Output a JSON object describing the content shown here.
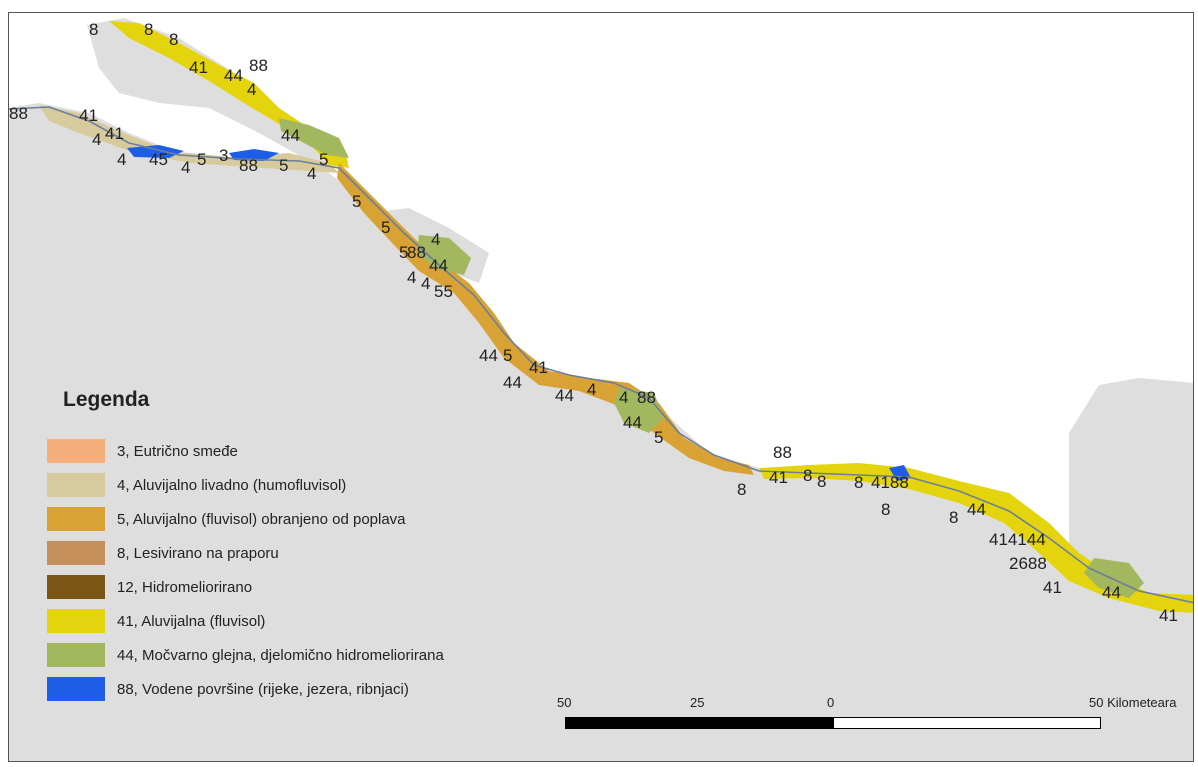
{
  "legend": {
    "title": "Legenda",
    "items": [
      {
        "code": "3",
        "label": "3, Eutrično smeđe",
        "color": "#f6ae7a"
      },
      {
        "code": "4",
        "label": "4, Aluvijalno livadno (humofluvisol)",
        "color": "#d7cb9d"
      },
      {
        "code": "5",
        "label": "5, Aluvijalno (fluvisol) obranjeno od poplava",
        "color": "#d9a235"
      },
      {
        "code": "8",
        "label": "8, Lesivirano na praporu",
        "color": "#c5905c"
      },
      {
        "code": "12",
        "label": "12, Hidromeliorirano",
        "color": "#7a5514"
      },
      {
        "code": "41",
        "label": "41, Aluvijalna (fluvisol)",
        "color": "#e4d40e"
      },
      {
        "code": "44",
        "label": "44, Močvarno glejna, djelomično hidromeliorirana",
        "color": "#a2b75e"
      },
      {
        "code": "88",
        "label": "88, Vodene površine (rijeke, jezera, ribnjaci)",
        "color": "#1e5ee6"
      }
    ]
  },
  "scale": {
    "ticks": [
      "50",
      "25",
      "0",
      "50 Kilometeara"
    ]
  },
  "map_labels": [
    "8",
    "8",
    "8",
    "41",
    "44",
    "88",
    "4",
    "88",
    "41",
    "4",
    "41",
    "4",
    "45",
    "4",
    "5",
    "3",
    "88",
    "5",
    "5",
    "4",
    "44",
    "5",
    "5",
    "5",
    "88",
    "4",
    "44",
    "4",
    "4",
    "55",
    "44",
    "5",
    "41",
    "44",
    "44",
    "4",
    "4",
    "88",
    "44",
    "5",
    "88",
    "41",
    "8",
    "8",
    "8",
    "8",
    "4188",
    "8",
    "8",
    "44",
    "414144",
    "2688",
    "41",
    "44",
    "41"
  ],
  "colors": {
    "background": "#dedede",
    "river": "#6b7f9a"
  }
}
